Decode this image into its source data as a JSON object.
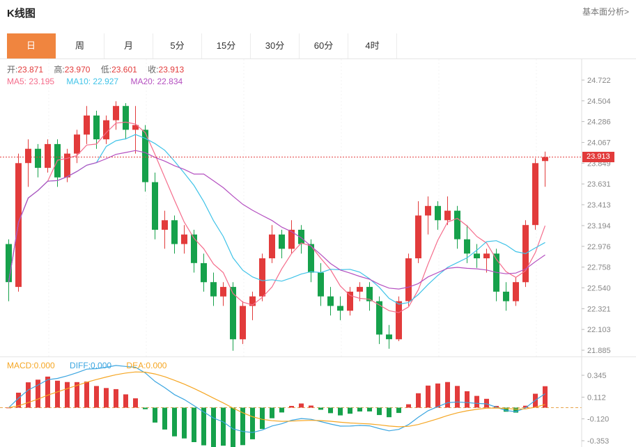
{
  "header": {
    "title": "K线图",
    "link": "基本面分析>"
  },
  "tabs": [
    {
      "label": "日",
      "active": true
    },
    {
      "label": "周",
      "active": false
    },
    {
      "label": "月",
      "active": false
    },
    {
      "label": "5分",
      "active": false
    },
    {
      "label": "15分",
      "active": false
    },
    {
      "label": "30分",
      "active": false
    },
    {
      "label": "60分",
      "active": false
    },
    {
      "label": "4时",
      "active": false
    }
  ],
  "legend": {
    "open_label": "开:",
    "open_value": "23.871",
    "high_label": "高:",
    "high_value": "23.970",
    "low_label": "低:",
    "low_value": "23.601",
    "close_label": "收:",
    "close_value": "23.913",
    "ma5": "MA5: 23.195",
    "ma10": "MA10: 22.927",
    "ma20": "MA20: 22.834"
  },
  "macd_legend": {
    "macd": "MACD:0.000",
    "diff": "DIFF:0.000",
    "dea": "DEA:0.000"
  },
  "colors": {
    "up": "#e23b3b",
    "down": "#16a14b",
    "accent_tab": "#f0853f",
    "ma5": "#f56c8b",
    "ma10": "#3fc3e8",
    "ma20": "#b44fc0",
    "diff_line": "#3aa5e0",
    "dea_line": "#f5a623",
    "price_line": "#e23b3b",
    "zero_line": "#e8a44a",
    "axis": "#dddddd",
    "tick_text": "#888888"
  },
  "chart_data": [
    {
      "type": "candlestick",
      "title": "K线图",
      "period": "日",
      "y_ticks": [
        24.722,
        24.504,
        24.286,
        24.067,
        23.849,
        23.631,
        23.413,
        23.194,
        22.976,
        22.758,
        22.54,
        22.321,
        22.103,
        21.885
      ],
      "last_price": "23.913",
      "ohlc": {
        "open": 23.871,
        "high": 23.97,
        "low": 23.601,
        "close": 23.913
      },
      "ma": {
        "MA5": 23.195,
        "MA10": 22.927,
        "MA20": 22.834
      },
      "candles": [
        [
          23.0,
          23.05,
          22.4,
          22.6
        ],
        [
          22.55,
          23.95,
          22.5,
          23.85
        ],
        [
          23.85,
          24.1,
          23.6,
          24.0
        ],
        [
          24.0,
          24.05,
          23.7,
          23.8
        ],
        [
          23.8,
          24.1,
          23.75,
          24.05
        ],
        [
          24.05,
          24.1,
          23.6,
          23.7
        ],
        [
          23.7,
          24.0,
          23.65,
          23.95
        ],
        [
          23.95,
          24.2,
          23.85,
          24.15
        ],
        [
          24.15,
          24.45,
          24.05,
          24.35
        ],
        [
          24.35,
          24.4,
          24.0,
          24.1
        ],
        [
          24.1,
          24.35,
          24.05,
          24.3
        ],
        [
          24.3,
          24.5,
          24.2,
          24.45
        ],
        [
          24.45,
          24.48,
          24.1,
          24.2
        ],
        [
          24.2,
          24.45,
          23.95,
          24.25
        ],
        [
          24.2,
          24.25,
          23.55,
          23.65
        ],
        [
          23.65,
          23.75,
          23.05,
          23.15
        ],
        [
          23.15,
          23.35,
          22.95,
          23.25
        ],
        [
          23.25,
          23.3,
          22.9,
          23.0
        ],
        [
          23.0,
          23.2,
          22.9,
          23.1
        ],
        [
          23.1,
          23.15,
          22.7,
          22.8
        ],
        [
          22.8,
          22.9,
          22.5,
          22.6
        ],
        [
          22.6,
          22.7,
          22.35,
          22.45
        ],
        [
          22.45,
          22.6,
          22.35,
          22.55
        ],
        [
          22.55,
          22.6,
          21.88,
          22.0
        ],
        [
          22.0,
          22.4,
          21.95,
          22.35
        ],
        [
          22.35,
          22.5,
          22.2,
          22.45
        ],
        [
          22.45,
          22.9,
          22.4,
          22.85
        ],
        [
          22.85,
          23.2,
          22.8,
          23.1
        ],
        [
          23.1,
          23.15,
          22.85,
          22.95
        ],
        [
          22.95,
          23.25,
          22.9,
          23.15
        ],
        [
          23.15,
          23.2,
          22.9,
          23.0
        ],
        [
          23.0,
          23.05,
          22.6,
          22.7
        ],
        [
          22.7,
          22.8,
          22.35,
          22.45
        ],
        [
          22.45,
          22.55,
          22.25,
          22.35
        ],
        [
          22.35,
          22.45,
          22.2,
          22.3
        ],
        [
          22.3,
          22.55,
          22.25,
          22.5
        ],
        [
          22.5,
          22.6,
          22.4,
          22.55
        ],
        [
          22.55,
          22.6,
          22.3,
          22.4
        ],
        [
          22.4,
          22.45,
          21.95,
          22.05
        ],
        [
          22.05,
          22.15,
          21.9,
          22.0
        ],
        [
          22.0,
          22.45,
          21.98,
          22.4
        ],
        [
          22.4,
          22.9,
          22.35,
          22.85
        ],
        [
          22.85,
          23.45,
          22.8,
          23.3
        ],
        [
          23.3,
          23.5,
          23.1,
          23.4
        ],
        [
          23.4,
          23.45,
          23.15,
          23.25
        ],
        [
          23.25,
          23.5,
          23.2,
          23.35
        ],
        [
          23.35,
          23.4,
          22.95,
          23.05
        ],
        [
          23.05,
          23.2,
          22.8,
          22.9
        ],
        [
          22.9,
          23.0,
          22.75,
          22.85
        ],
        [
          22.85,
          22.95,
          22.7,
          22.9
        ],
        [
          22.9,
          22.95,
          22.4,
          22.5
        ],
        [
          22.5,
          22.6,
          22.3,
          22.4
        ],
        [
          22.4,
          22.65,
          22.35,
          22.6
        ],
        [
          22.6,
          23.25,
          22.55,
          23.2
        ],
        [
          23.2,
          23.9,
          23.15,
          23.85
        ],
        [
          23.871,
          23.97,
          23.601,
          23.913
        ]
      ]
    },
    {
      "type": "bar",
      "name": "MACD",
      "y_ticks": [
        0.345,
        0.112,
        -0.12,
        -0.353
      ],
      "legend_values": {
        "MACD": 0.0,
        "DIFF": 0.0,
        "DEA": 0.0
      }
    }
  ]
}
